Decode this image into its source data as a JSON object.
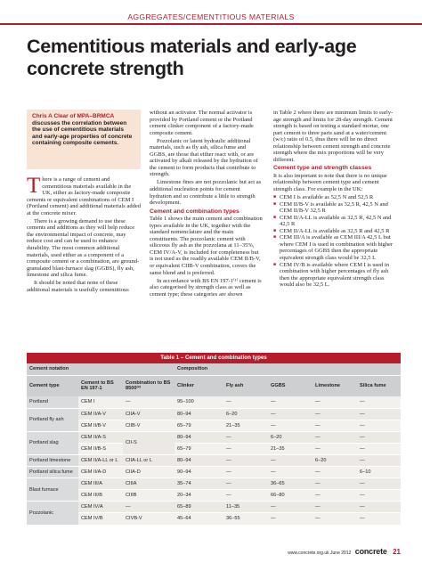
{
  "header": {
    "section_label": "AGGREGATES/CEMENTITIOUS MATERIALS",
    "title": "Cementitious materials and early-age concrete strength"
  },
  "intro": {
    "author": "Chris A Clear",
    "org": "of MPA–BRMCA",
    "text": "discusses the correlation between the use of cementitious materials and early-age properties of concrete containing composite cements."
  },
  "column1": {
    "dropcap": "T",
    "p1": "here is a range of cement and cementitious materials available in the UK, either as factory-made composite cements or equivalent combinations of CEM I (Portland cement) and additional materials added at the concrete mixer.",
    "p2": "There is a growing demand to use these cements and additions as they will help reduce the environmental impact of concrete, may reduce cost and can be used to enhance durability. The most common additional materials, used either as a component of a composite cement or a combination, are ground-granulated blast-furnace slag (GGBS), fly ash, limestone and silica fume.",
    "p3": "It should be noted that none of these additional materials is usefully cementitious"
  },
  "column2": {
    "p1": "without an activator. The normal activator is provided by Portland cement or the Portland cement clinker component of a factory-made composite cement.",
    "p2": "Pozzolanic or latent hydraulic additional materials, such as fly ash, silica fume and GGBS, are those that either react with, or are activated by alkali released by the hydration of the cement to form products that contribute to strength.",
    "p3": "Limestone fines are not pozzolanic but act as additional nucleation points for cement hydration and so contribute a little to strength development.",
    "subhead": "Cement and combination types",
    "p4": "Table 1 shows the main cement and combination types available in the UK, together with the standard nomenclature and the main constituents. The pozzolanic cement with siliceous fly ash as the pozzolana at 11–35%, CEM IV/A-V, is included for completeness but is not used as the readily available CEM II/B-V, or equivalent CIIB-V combination, covers the same blend and is preferred.",
    "p5": "In accordance with BS EN 197-1⁽¹⁾ cement is also categorised by strength class as well as cement type; these categories are shown"
  },
  "column3": {
    "p1": "in Table 2 where there are minimum limits to early-age strength and limits for 28-day strength. Cement strength is based on testing a standard mortar, one part cement to three parts sand at a water/cement (w/c) ratio of 0.5, thus there will be no direct relationship between cement strength and concrete strength where the mix proportions will be very different.",
    "subhead": "Cement type and strength classes",
    "p2": "It is also important to note that there is no unique relationship between cement type and cement strength class. For example in the UK:",
    "bullets": [
      "CEM I is available as 52,5 N and 52,5 R",
      "CEM II/B-V is available as 32,5 R, 42,5 N and CEM II/B-V 32,5 R",
      "CEM II/A-LL is available as 32,5 R, 42,5 N and 42,5 R",
      "CEM II/A-LL is available as 32,5 R and 42,5 R",
      "CEM III/A is available as CEM III/A 42,5 L but where CEM I is used in combination with higher percentages of GGBS then the appropriate equivalent strength class would be 32,5 L",
      "CEM IV/B is available where CEM I is used in combination with higher percentages of fly ash then the appropriate equivalent strength class would also be 32,5 L."
    ]
  },
  "table": {
    "title": "Table 1 – Cement and combination types",
    "group_header_notation": "Cement notation",
    "group_header_composition": "Composition",
    "columns": [
      "Cement type",
      "Cement to BS EN 197-1",
      "Combination to BS 8500⁽²⁾",
      "Clinker",
      "Fly ash",
      "GGBS",
      "Limestone",
      "Silica fume"
    ],
    "rows": [
      {
        "type": "Portland",
        "cem": "CEM I",
        "comb": "—",
        "clinker": "95–100",
        "flyash": "—",
        "ggbs": "—",
        "lime": "—",
        "silica": "—"
      },
      {
        "type": "Portland fly ash",
        "cem": "CEM II/A-V",
        "comb": "CIIA-V",
        "clinker": "80–94",
        "flyash": "6–20",
        "ggbs": "—",
        "lime": "—",
        "silica": "—"
      },
      {
        "type": "",
        "cem": "CEM II/B-V",
        "comb": "CIIB-V",
        "clinker": "65–79",
        "flyash": "21–35",
        "ggbs": "—",
        "lime": "—",
        "silica": "—"
      },
      {
        "type": "Portland slag",
        "cem": "CEM II/A-S",
        "comb": "CII-S",
        "clinker": "80–94",
        "flyash": "—",
        "ggbs": "6–20",
        "lime": "—",
        "silica": "—"
      },
      {
        "type": "",
        "cem": "CEM II/B-S",
        "comb": "",
        "clinker": "65–79",
        "flyash": "—",
        "ggbs": "21–35",
        "lime": "—",
        "silica": "—"
      },
      {
        "type": "Portland limestone",
        "cem": "CEM II/A-LL or L",
        "comb": "CIIA-LL or L",
        "clinker": "80–94",
        "flyash": "—",
        "ggbs": "—",
        "lime": "6–20",
        "silica": "—"
      },
      {
        "type": "Portland silica fume",
        "cem": "CEM II/A-D",
        "comb": "CIIA-D",
        "clinker": "90–94",
        "flyash": "—",
        "ggbs": "—",
        "lime": "—",
        "silica": "6–10"
      },
      {
        "type": "Blast furnace",
        "cem": "CEM III/A",
        "comb": "CIIIA",
        "clinker": "35–74",
        "flyash": "—",
        "ggbs": "36–65",
        "lime": "—",
        "silica": "—"
      },
      {
        "type": "",
        "cem": "CEM III/B",
        "comb": "CIIIB",
        "clinker": "20–34",
        "flyash": "—",
        "ggbs": "66–80",
        "lime": "—",
        "silica": "—"
      },
      {
        "type": "Pozzolanic",
        "cem": "CEM IV/A",
        "comb": "—",
        "clinker": "65–89",
        "flyash": "11–35",
        "ggbs": "—",
        "lime": "—",
        "silica": "—"
      },
      {
        "type": "",
        "cem": "CEM IV/B",
        "comb": "CIVB-V",
        "clinker": "45–64",
        "flyash": "36–55",
        "ggbs": "—",
        "lime": "—",
        "silica": "—"
      }
    ]
  },
  "footer": {
    "url": "www.concrete.org.uk",
    "date": "June 2012",
    "brand": "concrete",
    "page": "21"
  }
}
